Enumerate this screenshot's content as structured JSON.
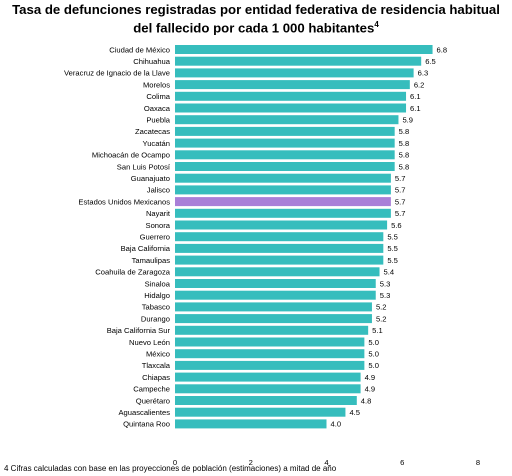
{
  "chart_data": {
    "type": "bar",
    "orientation": "horizontal",
    "title_line1": "Tasa de defunciones registradas por entidad federativa de residencia habitual",
    "title_line2": "del fallecido por cada 1 000 habitantes",
    "title_footnote_mark": "4",
    "categories": [
      "Ciudad de México",
      "Chihuahua",
      "Veracruz de Ignacio de la Llave",
      "Morelos",
      "Colima",
      "Oaxaca",
      "Puebla",
      "Zacatecas",
      "Yucatán",
      "Michoacán de Ocampo",
      "San Luis Potosí",
      "Guanajuato",
      "Jalisco",
      "Estados Unidos Mexicanos",
      "Nayarit",
      "Sonora",
      "Guerrero",
      "Baja California",
      "Tamaulipas",
      "Coahuila de Zaragoza",
      "Sinaloa",
      "Hidalgo",
      "Tabasco",
      "Durango",
      "Baja California Sur",
      "Nuevo León",
      "México",
      "Tlaxcala",
      "Chiapas",
      "Campeche",
      "Querétaro",
      "Aguascalientes",
      "Quintana Roo"
    ],
    "values": [
      6.8,
      6.5,
      6.3,
      6.2,
      6.1,
      6.1,
      5.9,
      5.8,
      5.8,
      5.8,
      5.8,
      5.7,
      5.7,
      5.7,
      5.7,
      5.6,
      5.5,
      5.5,
      5.5,
      5.4,
      5.3,
      5.3,
      5.2,
      5.2,
      5.1,
      5.0,
      5.0,
      5.0,
      4.9,
      4.9,
      4.8,
      4.5,
      4.0
    ],
    "highlight_category": "Estados Unidos Mexicanos",
    "xlim": [
      0,
      8
    ],
    "xticks": [
      "0",
      "2",
      "4",
      "6",
      "8"
    ],
    "bar_color": "#36bdbd",
    "highlight_color": "#a97fd8",
    "grid": false,
    "legend": "none"
  },
  "footnote": "4 Cifras calculadas con base en las proyecciones de población (estimaciones) a mitad de año"
}
